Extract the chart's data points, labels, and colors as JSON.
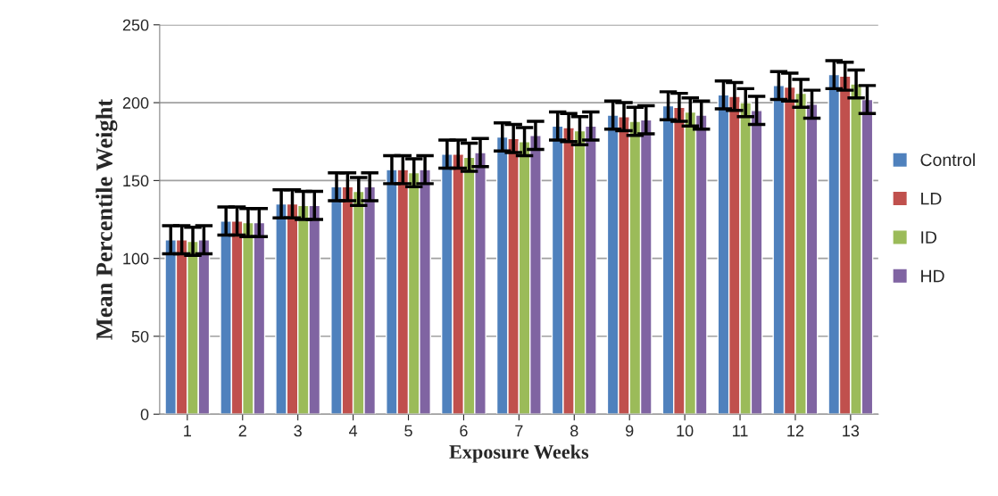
{
  "chart_data": {
    "type": "bar",
    "xlabel": "Exposure Weeks",
    "ylabel": "Mean Percentile Weight",
    "categories": [
      "1",
      "2",
      "3",
      "4",
      "5",
      "6",
      "7",
      "8",
      "9",
      "10",
      "11",
      "12",
      "13"
    ],
    "series": [
      {
        "name": "Control",
        "color": "#4f81bd",
        "values": [
          112,
          124,
          135,
          146,
          157,
          167,
          178,
          185,
          192,
          198,
          205,
          211,
          218
        ],
        "errors": [
          9,
          9,
          9,
          9,
          9,
          9,
          9,
          9,
          9,
          9,
          9,
          9,
          9
        ]
      },
      {
        "name": "LD",
        "color": "#c0504d",
        "values": [
          112,
          124,
          135,
          146,
          157,
          167,
          177,
          184,
          191,
          197,
          204,
          210,
          217
        ],
        "errors": [
          9,
          9,
          9,
          9,
          9,
          9,
          9,
          9,
          9,
          9,
          9,
          9,
          9
        ]
      },
      {
        "name": "ID",
        "color": "#9bbb59",
        "values": [
          111,
          123,
          134,
          143,
          155,
          165,
          175,
          182,
          188,
          194,
          200,
          206,
          212
        ],
        "errors": [
          9,
          9,
          9,
          9,
          9,
          9,
          9,
          9,
          9,
          9,
          9,
          9,
          9
        ]
      },
      {
        "name": "HD",
        "color": "#8064a2",
        "values": [
          112,
          123,
          134,
          146,
          157,
          168,
          179,
          185,
          189,
          192,
          195,
          199,
          202
        ],
        "errors": [
          9,
          9,
          9,
          9,
          9,
          9,
          9,
          9,
          9,
          9,
          9,
          9,
          9
        ]
      }
    ],
    "ylim": [
      0,
      250
    ],
    "yticks": [
      0,
      50,
      100,
      150,
      200,
      250
    ],
    "grid": "y",
    "legend": "right"
  }
}
